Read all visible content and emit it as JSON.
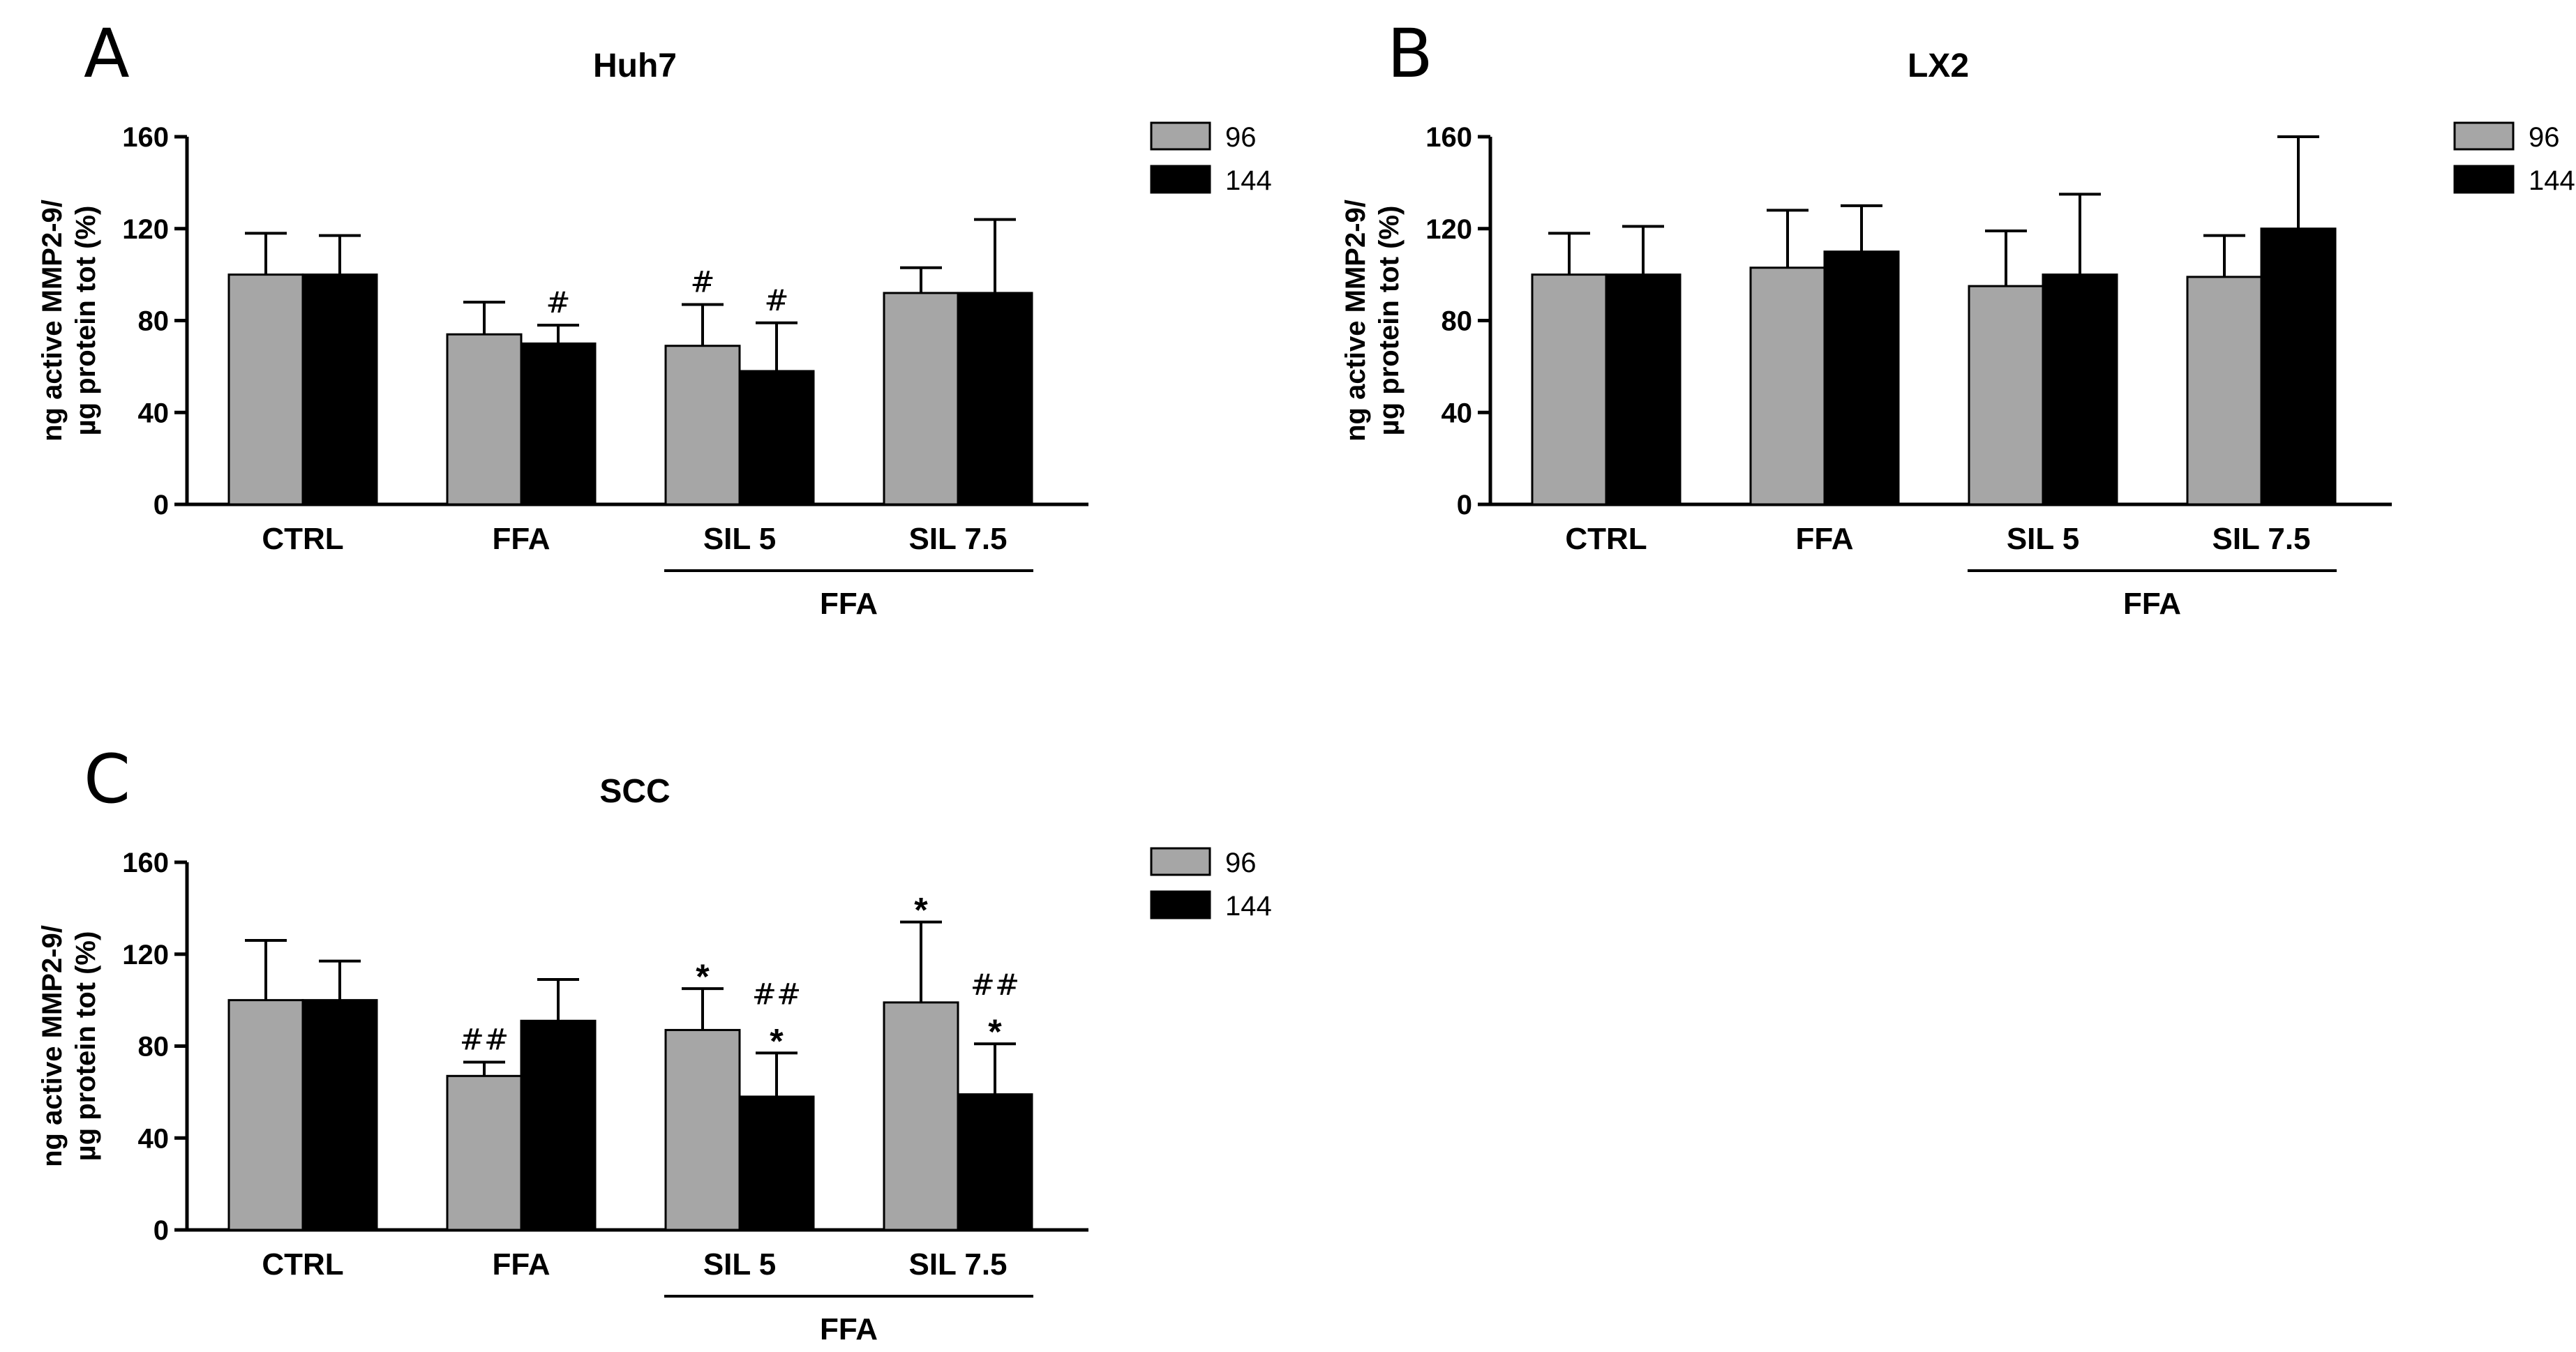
{
  "legend": [
    {
      "label": "96",
      "color": "#a6a6a6"
    },
    {
      "label": "144",
      "color": "#000000"
    }
  ],
  "chart_data": [
    {
      "type": "bar",
      "panel": "A",
      "title": "Huh7",
      "ylabel_line1": "ng active MMP2-9/",
      "ylabel_line2": "µg protein tot (%)",
      "ylim": [
        0,
        160
      ],
      "yticks": [
        0,
        40,
        80,
        120,
        160
      ],
      "categories": [
        "CTRL",
        "FFA",
        "SIL 5",
        "SIL 7.5"
      ],
      "group_label": "FFA",
      "series": [
        {
          "name": "96",
          "values": [
            100,
            74,
            69,
            92
          ],
          "errors": [
            18,
            14,
            18,
            11
          ],
          "annotations": [
            "",
            "",
            "#",
            ""
          ]
        },
        {
          "name": "144",
          "values": [
            100,
            70,
            58,
            92
          ],
          "errors": [
            17,
            8,
            21,
            32
          ],
          "annotations": [
            "",
            "#",
            "#",
            ""
          ]
        }
      ]
    },
    {
      "type": "bar",
      "panel": "B",
      "title": "LX2",
      "ylabel_line1": "ng active MMP2-9/",
      "ylabel_line2": "µg protein tot (%)",
      "ylim": [
        0,
        160
      ],
      "yticks": [
        0,
        40,
        80,
        120,
        160
      ],
      "categories": [
        "CTRL",
        "FFA",
        "SIL 5",
        "SIL 7.5"
      ],
      "group_label": "FFA",
      "series": [
        {
          "name": "96",
          "values": [
            100,
            103,
            95,
            99
          ],
          "errors": [
            18,
            25,
            24,
            18
          ],
          "annotations": [
            "",
            "",
            "",
            ""
          ]
        },
        {
          "name": "144",
          "values": [
            100,
            110,
            100,
            120
          ],
          "errors": [
            21,
            20,
            35,
            40
          ],
          "annotations": [
            "",
            "",
            "",
            ""
          ]
        }
      ]
    },
    {
      "type": "bar",
      "panel": "C",
      "title": "SCC",
      "ylabel_line1": "ng active MMP2-9/",
      "ylabel_line2": "µg protein tot (%)",
      "ylim": [
        0,
        160
      ],
      "yticks": [
        0,
        40,
        80,
        120,
        160
      ],
      "categories": [
        "CTRL",
        "FFA",
        "SIL 5",
        "SIL 7.5"
      ],
      "group_label": "FFA",
      "series": [
        {
          "name": "96",
          "values": [
            100,
            67,
            87,
            99
          ],
          "errors": [
            26,
            6,
            18,
            35
          ],
          "annotations": [
            "",
            "##",
            "*",
            "*"
          ]
        },
        {
          "name": "144",
          "values": [
            100,
            91,
            58,
            59
          ],
          "errors": [
            17,
            18,
            19,
            22
          ],
          "annotations": [
            "",
            "",
            "##\n*",
            "##\n*"
          ]
        }
      ]
    }
  ]
}
